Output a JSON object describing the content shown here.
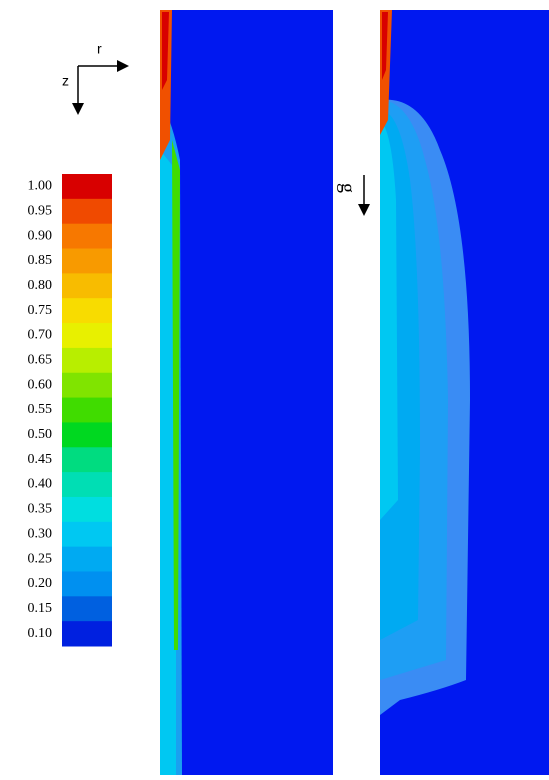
{
  "axes": {
    "r": "r",
    "z": "z"
  },
  "gravity": "g",
  "colorbar": {
    "labels": [
      "1.00",
      "0.95",
      "0.90",
      "0.85",
      "0.80",
      "0.75",
      "0.70",
      "0.65",
      "0.60",
      "0.55",
      "0.50",
      "0.45",
      "0.40",
      "0.35",
      "0.30",
      "0.25",
      "0.20",
      "0.15",
      "0.10"
    ],
    "colors": [
      "#d80000",
      "#f04a00",
      "#f77800",
      "#f89a00",
      "#f8bc00",
      "#f8dc00",
      "#e8f000",
      "#b8ee00",
      "#80e400",
      "#40dc00",
      "#00d820",
      "#00dc80",
      "#00deb4",
      "#00dee0",
      "#00c8f2",
      "#00aaf2",
      "#0090f0",
      "#0060e0",
      "#0020e0"
    ]
  }
}
